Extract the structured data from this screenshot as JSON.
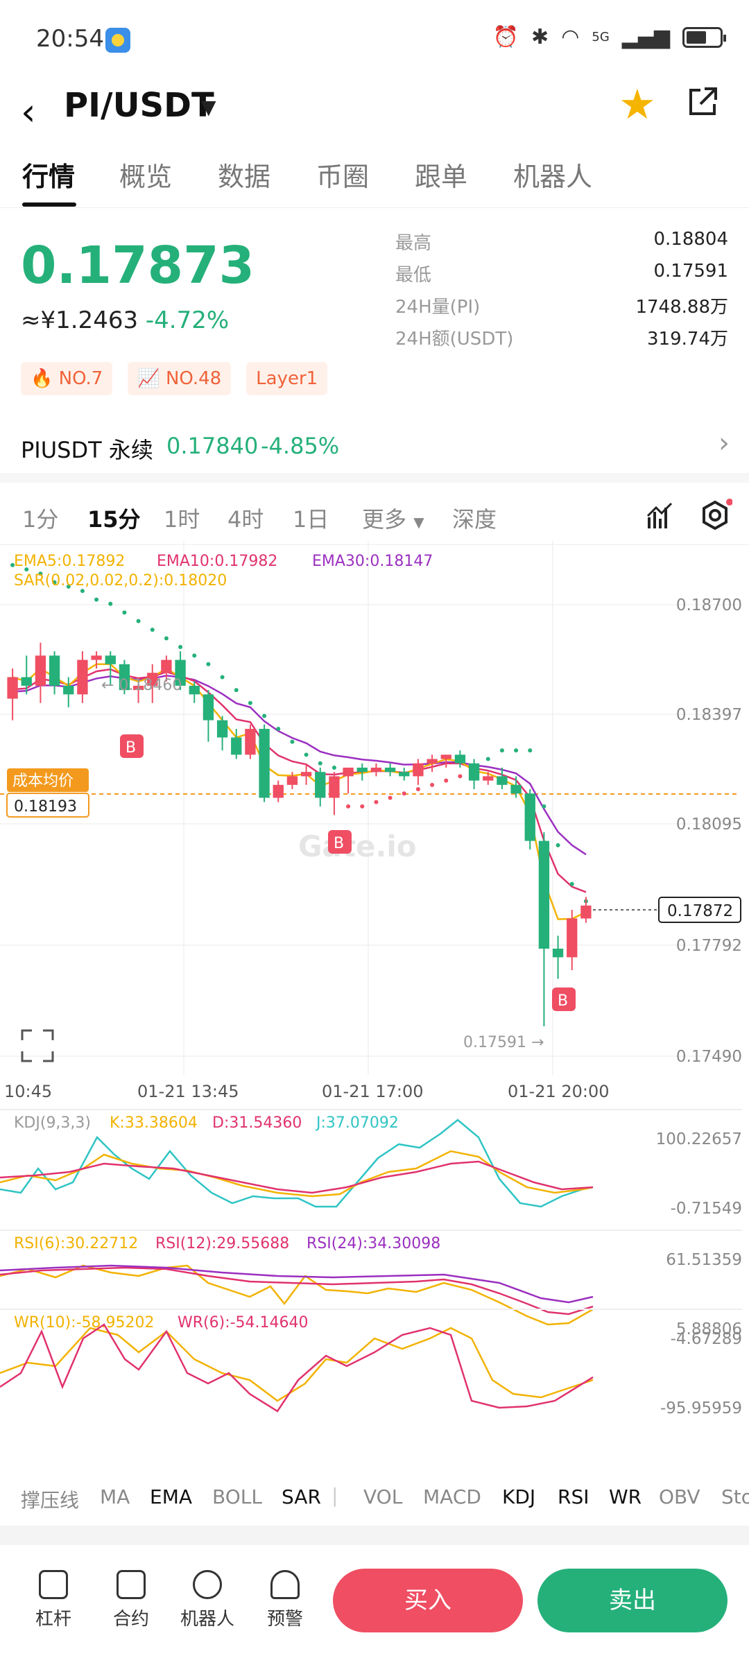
{
  "status": {
    "time": "20:54",
    "network": "5G"
  },
  "header": {
    "pair": "PI/USDT",
    "favorited": true
  },
  "tabs": [
    "行情",
    "概览",
    "数据",
    "币圈",
    "跟单",
    "机器人"
  ],
  "price": {
    "last": "0.17873",
    "cny": "≈¥1.2463",
    "change": "-4.72%"
  },
  "stats": [
    {
      "k": "最高",
      "v": "0.18804"
    },
    {
      "k": "最低",
      "v": "0.17591"
    },
    {
      "k": "24H量(PI)",
      "v": "1748.88万"
    },
    {
      "k": "24H额(USDT)",
      "v": "319.74万"
    }
  ],
  "tags": [
    "NO.7",
    "NO.48",
    "Layer1"
  ],
  "perp": {
    "name": "PIUSDT 永续",
    "price": "0.17840",
    "change": "-4.85%"
  },
  "intervals": [
    "1分",
    "15分",
    "1时",
    "4时",
    "1日",
    "更多",
    "深度"
  ],
  "chart": {
    "ema_legend": {
      "ema5": "EMA5:0.17892",
      "ema10": "EMA10:0.17982",
      "ema30": "EMA30:0.18147"
    },
    "sar_legend": "SAR(0.02,0.02,0.2):0.18020",
    "y_ticks": [
      "0.18700",
      "0.18397",
      "0.18095",
      "0.17792",
      "0.17490"
    ],
    "x_ticks": [
      "10:45",
      "01-21 13:45",
      "01-21 17:00",
      "01-21 20:00"
    ],
    "current_price": "0.17872",
    "cost_label": "成本均价",
    "cost_value": "0.18193",
    "high_mark": "← 0.18460",
    "low_mark": "0.17591 →",
    "trade_marker": "B",
    "watermark": "Gate.io",
    "kdj": {
      "label": "KDJ(9,3,3)",
      "k": "K:33.38604",
      "d": "D:31.54360",
      "j": "J:37.07092",
      "max": "100.22657",
      "min": "-0.71549"
    },
    "rsi": {
      "r6": "RSI(6):30.22712",
      "r12": "RSI(12):29.55688",
      "r24": "RSI(24):34.30098",
      "max": "61.51359",
      "min": "5.88806"
    },
    "wr": {
      "w10": "WR(10):-58.95202",
      "w6": "WR(6):-54.14640",
      "max": "-4.67289",
      "min": "-95.95959"
    }
  },
  "chart_data": {
    "type": "candlestick",
    "candles": [
      {
        "o": 0.1835,
        "h": 0.1842,
        "l": 0.183,
        "c": 0.184
      },
      {
        "o": 0.184,
        "h": 0.1845,
        "l": 0.1836,
        "c": 0.1838
      },
      {
        "o": 0.1838,
        "h": 0.1848,
        "l": 0.1834,
        "c": 0.1845
      },
      {
        "o": 0.1845,
        "h": 0.1846,
        "l": 0.1836,
        "c": 0.1838
      },
      {
        "o": 0.1838,
        "h": 0.184,
        "l": 0.1833,
        "c": 0.1836
      },
      {
        "o": 0.1836,
        "h": 0.1846,
        "l": 0.1834,
        "c": 0.1844
      },
      {
        "o": 0.1844,
        "h": 0.1846,
        "l": 0.1842,
        "c": 0.1845
      },
      {
        "o": 0.1845,
        "h": 0.1846,
        "l": 0.1838,
        "c": 0.1843
      },
      {
        "o": 0.1843,
        "h": 0.1844,
        "l": 0.1836,
        "c": 0.1837
      },
      {
        "o": 0.1837,
        "h": 0.184,
        "l": 0.1834,
        "c": 0.1838
      },
      {
        "o": 0.1838,
        "h": 0.1843,
        "l": 0.1834,
        "c": 0.1841
      },
      {
        "o": 0.1841,
        "h": 0.1845,
        "l": 0.1839,
        "c": 0.1844
      },
      {
        "o": 0.1844,
        "h": 0.1846,
        "l": 0.1837,
        "c": 0.1838
      },
      {
        "o": 0.1838,
        "h": 0.1839,
        "l": 0.1834,
        "c": 0.1836
      },
      {
        "o": 0.1836,
        "h": 0.1837,
        "l": 0.1825,
        "c": 0.183
      },
      {
        "o": 0.183,
        "h": 0.1831,
        "l": 0.1823,
        "c": 0.1826
      },
      {
        "o": 0.1826,
        "h": 0.1828,
        "l": 0.1821,
        "c": 0.1822
      },
      {
        "o": 0.1822,
        "h": 0.1829,
        "l": 0.1821,
        "c": 0.1828
      },
      {
        "o": 0.1828,
        "h": 0.1829,
        "l": 0.1811,
        "c": 0.1812
      },
      {
        "o": 0.1812,
        "h": 0.1816,
        "l": 0.1811,
        "c": 0.1815
      },
      {
        "o": 0.1815,
        "h": 0.1818,
        "l": 0.1814,
        "c": 0.1817
      },
      {
        "o": 0.1817,
        "h": 0.182,
        "l": 0.1815,
        "c": 0.1818
      },
      {
        "o": 0.1818,
        "h": 0.1819,
        "l": 0.181,
        "c": 0.1812
      },
      {
        "o": 0.1812,
        "h": 0.1818,
        "l": 0.1808,
        "c": 0.1817
      },
      {
        "o": 0.1817,
        "h": 0.1819,
        "l": 0.1813,
        "c": 0.1819
      },
      {
        "o": 0.1819,
        "h": 0.182,
        "l": 0.1816,
        "c": 0.1818
      },
      {
        "o": 0.1818,
        "h": 0.182,
        "l": 0.1817,
        "c": 0.1819
      },
      {
        "o": 0.1819,
        "h": 0.182,
        "l": 0.1817,
        "c": 0.1818
      },
      {
        "o": 0.1818,
        "h": 0.1819,
        "l": 0.1816,
        "c": 0.1817
      },
      {
        "o": 0.1817,
        "h": 0.1821,
        "l": 0.1815,
        "c": 0.182
      },
      {
        "o": 0.182,
        "h": 0.1822,
        "l": 0.1818,
        "c": 0.1821
      },
      {
        "o": 0.1821,
        "h": 0.1822,
        "l": 0.1819,
        "c": 0.1822
      },
      {
        "o": 0.1822,
        "h": 0.1823,
        "l": 0.1819,
        "c": 0.182
      },
      {
        "o": 0.182,
        "h": 0.1821,
        "l": 0.1814,
        "c": 0.1816
      },
      {
        "o": 0.1816,
        "h": 0.1818,
        "l": 0.1815,
        "c": 0.1817
      },
      {
        "o": 0.1817,
        "h": 0.1819,
        "l": 0.1814,
        "c": 0.1815
      },
      {
        "o": 0.1815,
        "h": 0.1817,
        "l": 0.1812,
        "c": 0.1813
      },
      {
        "o": 0.1813,
        "h": 0.1814,
        "l": 0.18,
        "c": 0.1802
      },
      {
        "o": 0.1802,
        "h": 0.1804,
        "l": 0.1759,
        "c": 0.1777
      },
      {
        "o": 0.1777,
        "h": 0.178,
        "l": 0.177,
        "c": 0.1775
      },
      {
        "o": 0.1775,
        "h": 0.1786,
        "l": 0.1772,
        "c": 0.1784
      },
      {
        "o": 0.1784,
        "h": 0.1789,
        "l": 0.1783,
        "c": 0.1787
      }
    ],
    "ylim": [
      0.1749,
      0.187
    ],
    "sar": [
      0.1866,
      0.1865,
      0.1864,
      0.1862,
      0.1861,
      0.186,
      0.1858,
      0.1857,
      0.1855,
      0.1853,
      0.1851,
      0.1849,
      0.1847,
      0.1845,
      0.1843,
      0.184,
      0.1837,
      0.1834,
      0.1831,
      0.1828,
      0.1825,
      0.1822,
      0.182,
      0.1819,
      0.181,
      0.181,
      0.1811,
      0.1812,
      0.1813,
      0.1814,
      0.1815,
      0.1816,
      0.1817,
      0.1818,
      0.1821,
      0.1823,
      0.1823,
      0.1823,
      0.181,
      0.1801,
      0.1792,
      0.1788
    ]
  },
  "indicators": [
    "撑压线",
    "MA",
    "EMA",
    "BOLL",
    "SAR",
    "VOL",
    "MACD",
    "KDJ",
    "RSI",
    "WR",
    "OBV",
    "StochRSI"
  ],
  "bottom": {
    "items": [
      "杠杆",
      "合约",
      "机器人",
      "预警"
    ],
    "buy": "买入",
    "sell": "卖出"
  },
  "colors": {
    "up": "#ef4e63",
    "down": "#25b07a",
    "ema5": "#f2b200",
    "ema10": "#e0326e",
    "ema30": "#9b2fc0",
    "sar": "#25b07a",
    "orange": "#f39a1e"
  }
}
